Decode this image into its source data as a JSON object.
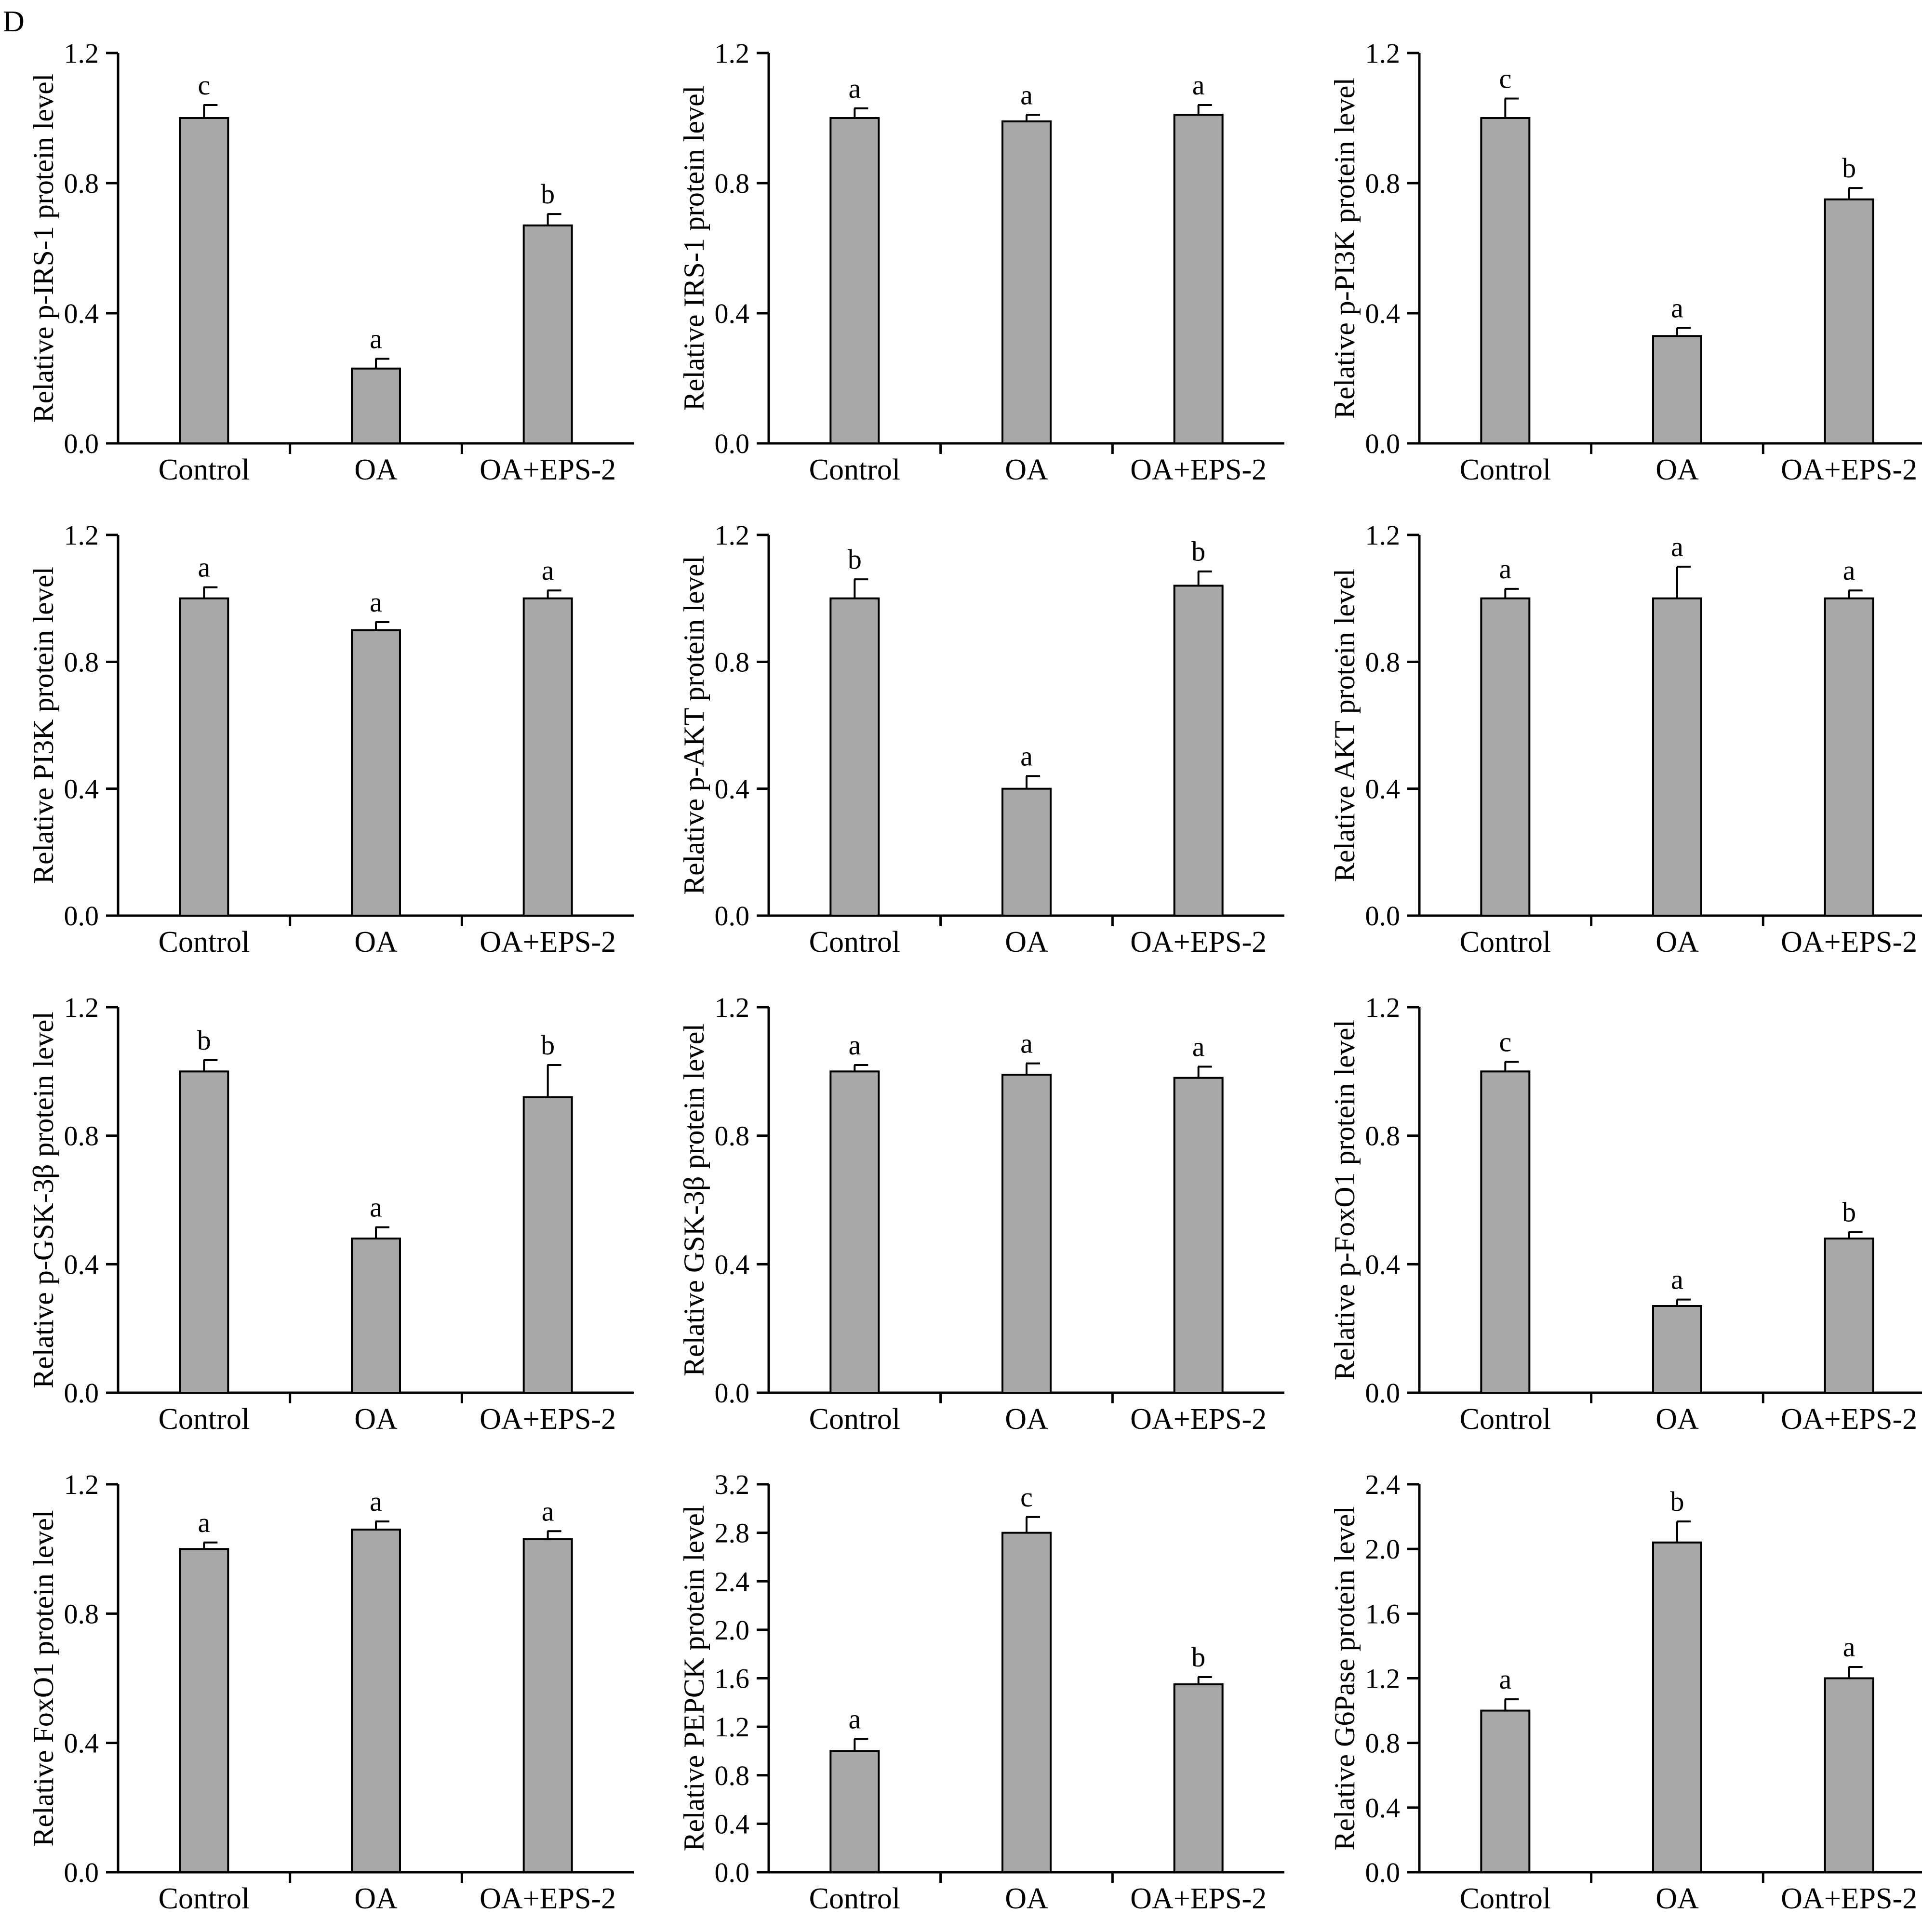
{
  "figure": {
    "panel_label": "D"
  },
  "style": {
    "bar_fill": "#a9a7a7",
    "stroke": "#000000",
    "background": "#ffffff"
  },
  "chart_data": [
    {
      "type": "bar",
      "title": "",
      "xlabel": "",
      "ylabel": "Relative p-IRS-1 protein level",
      "categories": [
        "Control",
        "OA",
        "OA+EPS-2"
      ],
      "values": [
        1.0,
        0.23,
        0.67
      ],
      "errors": [
        0.04,
        0.03,
        0.035
      ],
      "sig_labels": [
        "c",
        "a",
        "b"
      ],
      "ylim": [
        0,
        1.2
      ],
      "yticks": [
        "0.0",
        "0.4",
        "0.8",
        "1.2"
      ],
      "grid": false
    },
    {
      "type": "bar",
      "title": "",
      "xlabel": "",
      "ylabel": "Relative IRS-1 protein level",
      "categories": [
        "Control",
        "OA",
        "OA+EPS-2"
      ],
      "values": [
        1.0,
        0.99,
        1.01
      ],
      "errors": [
        0.03,
        0.02,
        0.03
      ],
      "sig_labels": [
        "a",
        "a",
        "a"
      ],
      "ylim": [
        0,
        1.2
      ],
      "yticks": [
        "0.0",
        "0.4",
        "0.8",
        "1.2"
      ],
      "grid": false
    },
    {
      "type": "bar",
      "title": "",
      "xlabel": "",
      "ylabel": "Relative p-PI3K protein level",
      "categories": [
        "Control",
        "OA",
        "OA+EPS-2"
      ],
      "values": [
        1.0,
        0.33,
        0.75
      ],
      "errors": [
        0.06,
        0.025,
        0.035
      ],
      "sig_labels": [
        "c",
        "a",
        "b"
      ],
      "ylim": [
        0,
        1.2
      ],
      "yticks": [
        "0.0",
        "0.4",
        "0.8",
        "1.2"
      ],
      "grid": false
    },
    {
      "type": "bar",
      "title": "",
      "xlabel": "",
      "ylabel": "Relative PI3K protein level",
      "categories": [
        "Control",
        "OA",
        "OA+EPS-2"
      ],
      "values": [
        1.0,
        0.9,
        1.0
      ],
      "errors": [
        0.035,
        0.025,
        0.025
      ],
      "sig_labels": [
        "a",
        "a",
        "a"
      ],
      "ylim": [
        0,
        1.2
      ],
      "yticks": [
        "0.0",
        "0.4",
        "0.8",
        "1.2"
      ],
      "grid": false
    },
    {
      "type": "bar",
      "title": "",
      "xlabel": "",
      "ylabel": "Relative p-AKT protein level",
      "categories": [
        "Control",
        "OA",
        "OA+EPS-2"
      ],
      "values": [
        1.0,
        0.4,
        1.04
      ],
      "errors": [
        0.06,
        0.04,
        0.045
      ],
      "sig_labels": [
        "b",
        "a",
        "b"
      ],
      "ylim": [
        0,
        1.2
      ],
      "yticks": [
        "0.0",
        "0.4",
        "0.8",
        "1.2"
      ],
      "grid": false
    },
    {
      "type": "bar",
      "title": "",
      "xlabel": "",
      "ylabel": "Relative AKT protein level",
      "categories": [
        "Control",
        "OA",
        "OA+EPS-2"
      ],
      "values": [
        1.0,
        1.0,
        1.0
      ],
      "errors": [
        0.03,
        0.1,
        0.025
      ],
      "sig_labels": [
        "a",
        "a",
        "a"
      ],
      "ylim": [
        0,
        1.2
      ],
      "yticks": [
        "0.0",
        "0.4",
        "0.8",
        "1.2"
      ],
      "grid": false
    },
    {
      "type": "bar",
      "title": "",
      "xlabel": "",
      "ylabel": "Relative p-GSK-3β protein level",
      "categories": [
        "Control",
        "OA",
        "OA+EPS-2"
      ],
      "values": [
        1.0,
        0.48,
        0.92
      ],
      "errors": [
        0.035,
        0.035,
        0.1
      ],
      "sig_labels": [
        "b",
        "a",
        "b"
      ],
      "ylim": [
        0,
        1.2
      ],
      "yticks": [
        "0.0",
        "0.4",
        "0.8",
        "1.2"
      ],
      "grid": false
    },
    {
      "type": "bar",
      "title": "",
      "xlabel": "",
      "ylabel": "Relative GSK-3β protein level",
      "categories": [
        "Control",
        "OA",
        "OA+EPS-2"
      ],
      "values": [
        1.0,
        0.99,
        0.98
      ],
      "errors": [
        0.02,
        0.035,
        0.035
      ],
      "sig_labels": [
        "a",
        "a",
        "a"
      ],
      "ylim": [
        0,
        1.2
      ],
      "yticks": [
        "0.0",
        "0.4",
        "0.8",
        "1.2"
      ],
      "grid": false
    },
    {
      "type": "bar",
      "title": "",
      "xlabel": "",
      "ylabel": "Relative p-FoxO1 protein level",
      "categories": [
        "Control",
        "OA",
        "OA+EPS-2"
      ],
      "values": [
        1.0,
        0.27,
        0.48
      ],
      "errors": [
        0.03,
        0.02,
        0.02
      ],
      "sig_labels": [
        "c",
        "a",
        "b"
      ],
      "ylim": [
        0,
        1.2
      ],
      "yticks": [
        "0.0",
        "0.4",
        "0.8",
        "1.2"
      ],
      "grid": false
    },
    {
      "type": "bar",
      "title": "",
      "xlabel": "",
      "ylabel": "Relative FoxO1 protein level",
      "categories": [
        "Control",
        "OA",
        "OA+EPS-2"
      ],
      "values": [
        1.0,
        1.06,
        1.03
      ],
      "errors": [
        0.02,
        0.025,
        0.025
      ],
      "sig_labels": [
        "a",
        "a",
        "a"
      ],
      "ylim": [
        0,
        1.2
      ],
      "yticks": [
        "0.0",
        "0.4",
        "0.8",
        "1.2"
      ],
      "grid": false
    },
    {
      "type": "bar",
      "title": "",
      "xlabel": "",
      "ylabel": "Relative PEPCK protein level",
      "categories": [
        "Control",
        "OA",
        "OA+EPS-2"
      ],
      "values": [
        1.0,
        2.8,
        1.55
      ],
      "errors": [
        0.1,
        0.13,
        0.06
      ],
      "sig_labels": [
        "a",
        "c",
        "b"
      ],
      "ylim": [
        0,
        3.2
      ],
      "yticks": [
        "0.0",
        "0.4",
        "0.8",
        "1.2",
        "1.6",
        "2.0",
        "2.4",
        "2.8",
        "3.2"
      ],
      "grid": false
    },
    {
      "type": "bar",
      "title": "",
      "xlabel": "",
      "ylabel": "Relative G6Pase protein level",
      "categories": [
        "Control",
        "OA",
        "OA+EPS-2"
      ],
      "values": [
        1.0,
        2.04,
        1.2
      ],
      "errors": [
        0.07,
        0.13,
        0.07
      ],
      "sig_labels": [
        "a",
        "b",
        "a"
      ],
      "ylim": [
        0,
        2.4
      ],
      "yticks": [
        "0.0",
        "0.4",
        "0.8",
        "1.2",
        "1.6",
        "2.0",
        "2.4"
      ],
      "grid": false
    }
  ]
}
